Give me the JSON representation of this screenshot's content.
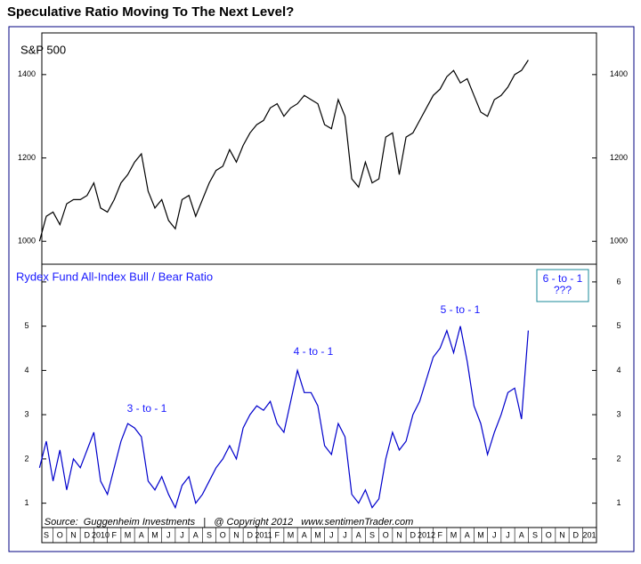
{
  "title": "Speculative Ratio Moving To The Next Level?",
  "x_axis_labels": [
    "S",
    "O",
    "N",
    "D",
    "2010",
    "F",
    "M",
    "A",
    "M",
    "J",
    "J",
    "A",
    "S",
    "O",
    "N",
    "D",
    "2011",
    "F",
    "M",
    "A",
    "M",
    "J",
    "J",
    "A",
    "S",
    "O",
    "N",
    "D",
    "2012",
    "F",
    "M",
    "A",
    "M",
    "J",
    "J",
    "A",
    "S",
    "O",
    "N",
    "D",
    "201"
  ],
  "source": "Source:  Guggenheim Investments   |   @ Copyright 2012   www.sentimenTrader.com",
  "chart_data": [
    {
      "type": "line",
      "title": "S&P 500",
      "color": "#000000",
      "values": [
        1000,
        1060,
        1070,
        1040,
        1090,
        1100,
        1100,
        1110,
        1140,
        1080,
        1070,
        1100,
        1140,
        1160,
        1190,
        1210,
        1120,
        1080,
        1100,
        1050,
        1030,
        1100,
        1110,
        1060,
        1100,
        1140,
        1170,
        1180,
        1220,
        1190,
        1230,
        1260,
        1280,
        1290,
        1320,
        1330,
        1300,
        1320,
        1330,
        1350,
        1340,
        1330,
        1280,
        1270,
        1340,
        1300,
        1150,
        1130,
        1190,
        1140,
        1150,
        1250,
        1260,
        1160,
        1250,
        1260,
        1290,
        1320,
        1350,
        1365,
        1395,
        1410,
        1380,
        1390,
        1350,
        1310,
        1300,
        1340,
        1350,
        1370,
        1400,
        1410,
        1435
      ],
      "ylim": [
        945,
        1500
      ],
      "yticks": [
        1000,
        1200,
        1400
      ]
    },
    {
      "type": "line",
      "title": "Rydex Fund All-Index Bull / Bear Ratio",
      "color": "#0000cc",
      "values": [
        1.8,
        2.4,
        1.5,
        2.2,
        1.3,
        2.0,
        1.8,
        2.2,
        2.6,
        1.5,
        1.2,
        1.8,
        2.4,
        2.8,
        2.7,
        2.5,
        1.5,
        1.3,
        1.6,
        1.2,
        0.9,
        1.4,
        1.6,
        1.0,
        1.2,
        1.5,
        1.8,
        2.0,
        2.3,
        2.0,
        2.7,
        3.0,
        3.2,
        3.1,
        3.3,
        2.8,
        2.6,
        3.3,
        4.0,
        3.5,
        3.5,
        3.2,
        2.3,
        2.1,
        2.8,
        2.5,
        1.2,
        1.0,
        1.3,
        0.9,
        1.1,
        2.0,
        2.6,
        2.2,
        2.4,
        3.0,
        3.3,
        3.8,
        4.3,
        4.5,
        4.9,
        4.4,
        5.0,
        4.2,
        3.2,
        2.8,
        2.1,
        2.6,
        3.0,
        3.5,
        3.6,
        2.9,
        4.9
      ],
      "ylim": [
        0.45,
        6.4
      ],
      "yticks": [
        1,
        2,
        3,
        4,
        5,
        6
      ],
      "annotations": [
        "3 - to - 1",
        "4 - to - 1",
        "5 - to - 1"
      ],
      "callout": [
        "6 - to - 1",
        "???"
      ]
    }
  ]
}
